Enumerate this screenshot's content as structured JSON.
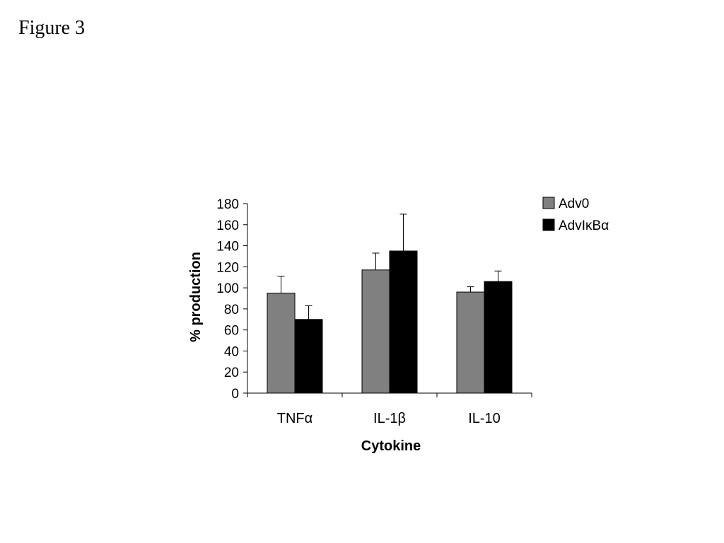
{
  "figure_label": "Figure 3",
  "chart_data": {
    "type": "bar",
    "categories": [
      "TNFα",
      "IL-1β",
      "IL-10"
    ],
    "series": [
      {
        "name": "Adv0",
        "values": [
          95,
          117,
          96
        ],
        "errors": [
          16,
          16,
          5
        ],
        "color": "#808080"
      },
      {
        "name": "AdvIκBα",
        "values": [
          70,
          135,
          106
        ],
        "errors": [
          13,
          35,
          10
        ],
        "color": "#000000"
      }
    ],
    "xlabel": "Cytokine",
    "ylabel": "% production",
    "ylim": [
      0,
      180
    ],
    "yticks": [
      0,
      20,
      40,
      60,
      80,
      100,
      120,
      140,
      160,
      180
    ],
    "grid": false,
    "legend_position": "top-right"
  }
}
